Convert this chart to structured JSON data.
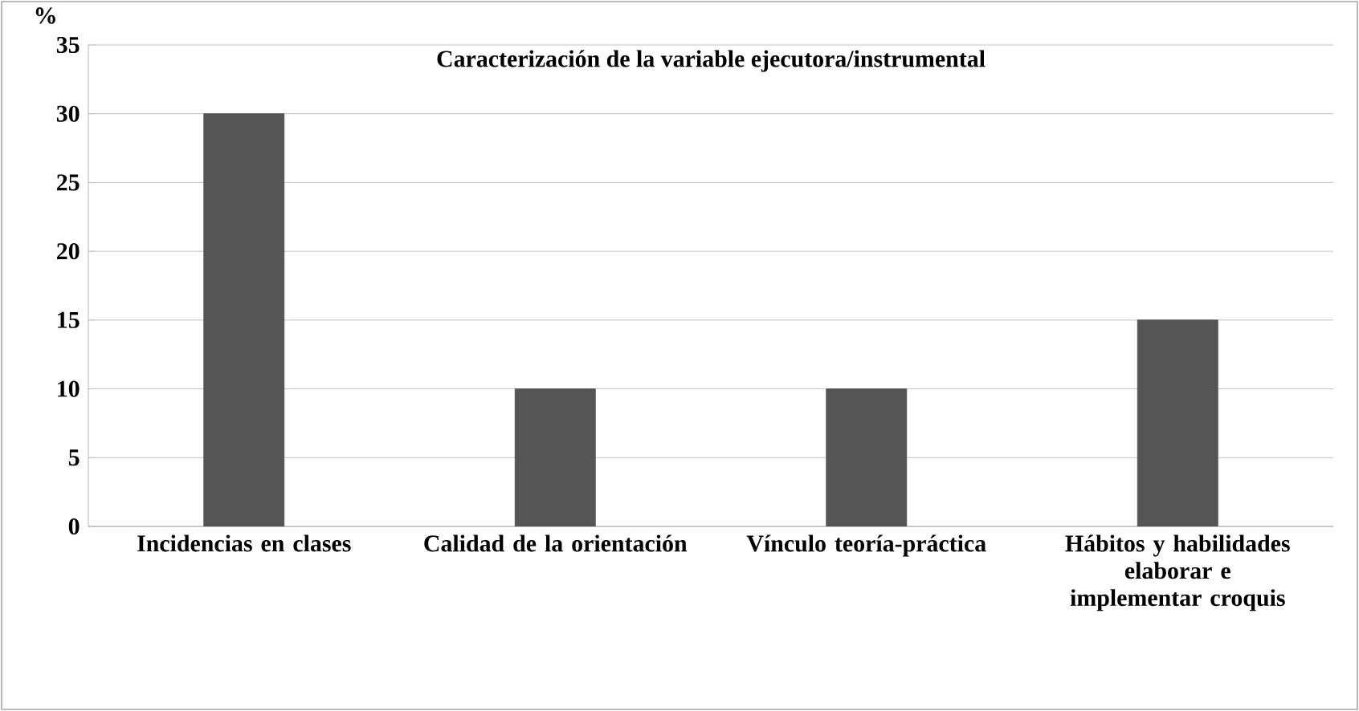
{
  "chart_data": {
    "type": "bar",
    "title": "Caracterización de la variable ejecutora/instrumental",
    "ylabel": "%",
    "categories": [
      "Incidencias en clases",
      "Calidad de la orientación",
      "Vínculo teoría-práctica",
      "Hábitos y habilidades elaborar e implementar croquis"
    ],
    "values": [
      30,
      10,
      10,
      15
    ],
    "color": "#555555",
    "ylim": [
      0,
      35
    ],
    "yticks": [
      0,
      5,
      10,
      15,
      20,
      25,
      30,
      35
    ],
    "grid": "y"
  }
}
